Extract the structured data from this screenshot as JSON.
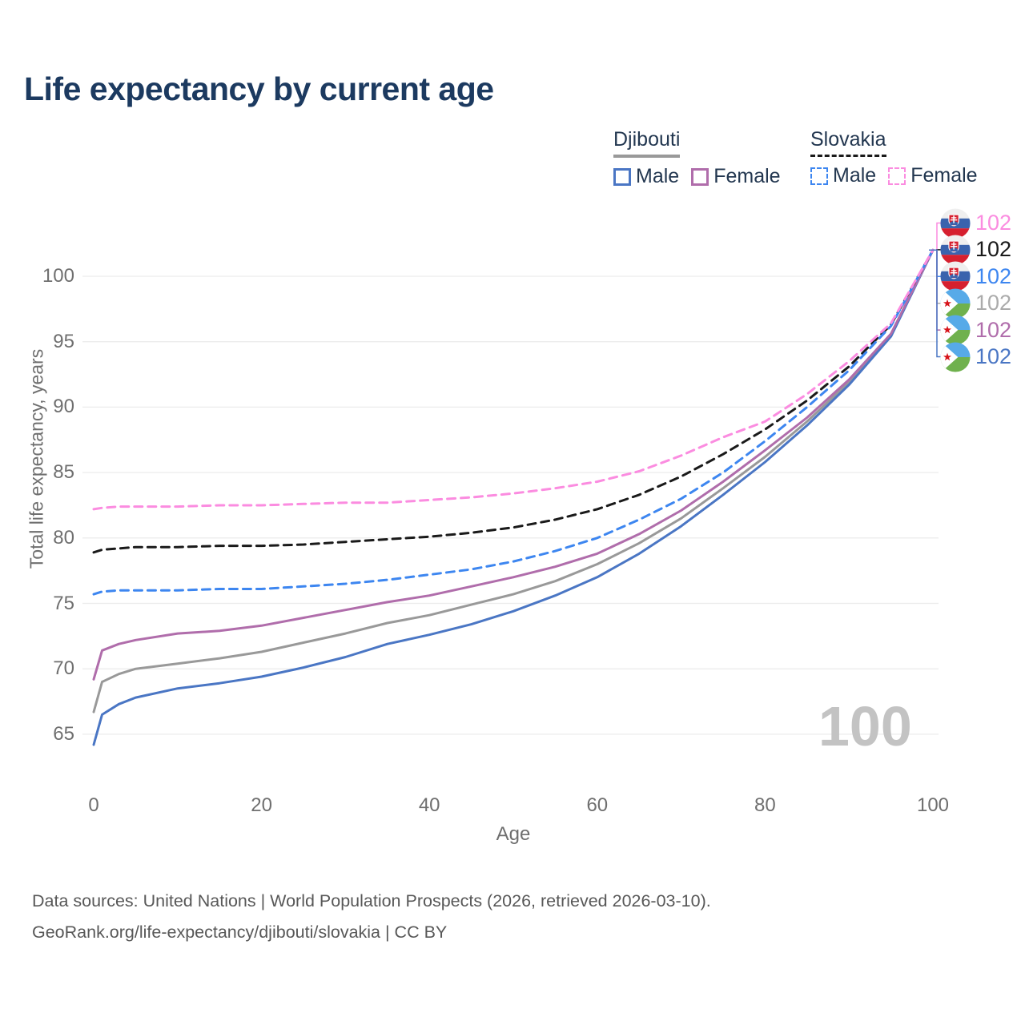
{
  "title": "Life expectancy by current age",
  "legend": {
    "djibouti": {
      "title": "Djibouti",
      "male": "Male",
      "female": "Female"
    },
    "slovakia": {
      "title": "Slovakia",
      "male": "Male",
      "female": "Female"
    }
  },
  "footer": {
    "line1": "Data sources: United Nations | World Population Prospects (2026, retrieved 2026-03-10).",
    "line2": "GeoRank.org/life-expectancy/djibouti/slovakia | CC BY"
  },
  "chart_data": {
    "type": "line",
    "title": "Life expectancy by current age",
    "xlabel": "Age",
    "ylabel": "Total life expectancy, years",
    "x_ticks": [
      0,
      20,
      40,
      60,
      80,
      100
    ],
    "y_ticks": [
      65,
      70,
      75,
      80,
      85,
      90,
      95,
      100
    ],
    "xlim": [
      0,
      100
    ],
    "ylim": [
      63.5,
      103.5
    ],
    "grid": true,
    "legend_position": "top-right",
    "watermark": "100",
    "ages": [
      0,
      1,
      3,
      5,
      10,
      15,
      20,
      25,
      30,
      35,
      40,
      45,
      50,
      55,
      60,
      65,
      70,
      75,
      80,
      85,
      90,
      95,
      100
    ],
    "series": [
      {
        "name": "Djibouti",
        "country": "djibouti",
        "sex": "both",
        "line": "solid",
        "color": "#999999",
        "values": [
          66.7,
          69.0,
          69.6,
          70.0,
          70.4,
          70.8,
          71.3,
          72.0,
          72.7,
          73.5,
          74.1,
          74.9,
          75.7,
          76.7,
          78.0,
          79.6,
          81.5,
          83.8,
          86.2,
          88.9,
          91.9,
          95.5,
          102
        ]
      },
      {
        "name": "Djibouti Male",
        "country": "djibouti",
        "sex": "male",
        "line": "solid",
        "color": "#4a76c4",
        "values": [
          64.2,
          66.5,
          67.3,
          67.8,
          68.5,
          68.9,
          69.4,
          70.1,
          70.9,
          71.9,
          72.6,
          73.4,
          74.4,
          75.6,
          77.0,
          78.8,
          80.9,
          83.3,
          85.8,
          88.6,
          91.7,
          95.4,
          102
        ]
      },
      {
        "name": "Djibouti Female",
        "country": "djibouti",
        "sex": "female",
        "line": "solid",
        "color": "#b06dab",
        "values": [
          69.2,
          71.4,
          71.9,
          72.2,
          72.7,
          72.9,
          73.3,
          73.9,
          74.5,
          75.1,
          75.6,
          76.3,
          77.0,
          77.8,
          78.8,
          80.3,
          82.1,
          84.3,
          86.7,
          89.2,
          92.1,
          95.6,
          102
        ]
      },
      {
        "name": "Slovakia",
        "country": "slovakia",
        "sex": "both",
        "line": "dashed",
        "color": "#1a1a1a",
        "values": [
          78.9,
          79.1,
          79.2,
          79.3,
          79.3,
          79.4,
          79.4,
          79.5,
          79.7,
          79.9,
          80.1,
          80.4,
          80.8,
          81.4,
          82.2,
          83.3,
          84.7,
          86.4,
          88.3,
          90.5,
          93.1,
          96.3,
          102
        ]
      },
      {
        "name": "Slovakia Male",
        "country": "slovakia",
        "sex": "male",
        "line": "dashed",
        "color": "#3d86f0",
        "values": [
          75.7,
          75.9,
          76.0,
          76.0,
          76.0,
          76.1,
          76.1,
          76.3,
          76.5,
          76.8,
          77.2,
          77.6,
          78.2,
          79.0,
          80.0,
          81.4,
          83.0,
          85.0,
          87.4,
          90.0,
          92.8,
          96.2,
          102
        ]
      },
      {
        "name": "Slovakia Female",
        "country": "slovakia",
        "sex": "female",
        "line": "dashed",
        "color": "#fb8ce0",
        "values": [
          82.2,
          82.3,
          82.4,
          82.4,
          82.4,
          82.5,
          82.5,
          82.6,
          82.7,
          82.7,
          82.9,
          83.1,
          83.4,
          83.8,
          84.3,
          85.1,
          86.3,
          87.7,
          88.9,
          91.0,
          93.5,
          96.4,
          102
        ]
      }
    ],
    "end_labels": [
      {
        "series": "Slovakia Female",
        "country": "slovakia",
        "value": "102",
        "color": "#fb8ce0"
      },
      {
        "series": "Slovakia",
        "country": "slovakia",
        "value": "102",
        "color": "#1a1a1a"
      },
      {
        "series": "Slovakia Male",
        "country": "slovakia",
        "value": "102",
        "color": "#3d86f0"
      },
      {
        "series": "Djibouti",
        "country": "djibouti",
        "value": "102",
        "color": "#ababab"
      },
      {
        "series": "Djibouti Female",
        "country": "djibouti",
        "value": "102",
        "color": "#b06dab"
      },
      {
        "series": "Djibouti Male",
        "country": "djibouti",
        "value": "102",
        "color": "#4a76c4"
      }
    ]
  }
}
